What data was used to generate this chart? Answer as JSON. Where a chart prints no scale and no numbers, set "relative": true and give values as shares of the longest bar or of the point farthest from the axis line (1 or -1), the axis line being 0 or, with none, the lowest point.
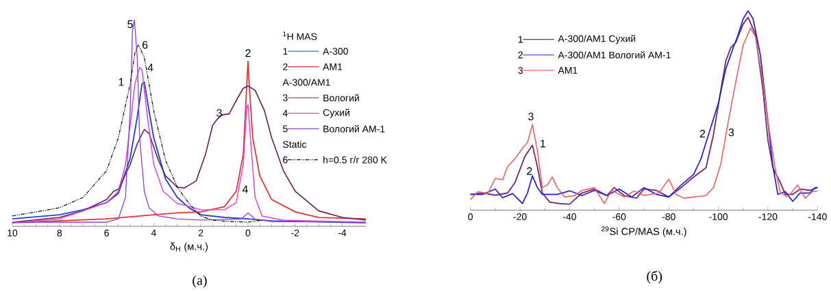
{
  "chart_data": [
    {
      "type": "line",
      "relative": true,
      "xlabel": "δ$_{H}$   (м.ч.)",
      "legend_title": "$^{1}$H MAS",
      "legend": "top right",
      "marker": "none",
      "xlim": [
        10,
        -5
      ],
      "xticks": [
        10,
        8,
        6,
        4,
        2,
        0,
        -2,
        -4
      ],
      "series": [
        {
          "name": "A-300",
          "color": "#1f3fe0",
          "line_style": "solid",
          "x": [
            10,
            8,
            7,
            6,
            5.5,
            5,
            4.7,
            4.5,
            4.4,
            4.2,
            4,
            3.5,
            3,
            2.5,
            2,
            1,
            0,
            -1,
            -5
          ],
          "values": [
            0.036,
            0.056,
            0.08,
            0.115,
            0.16,
            0.33,
            0.53,
            0.69,
            0.7,
            0.56,
            0.43,
            0.23,
            0.14,
            0.09,
            0.056,
            0.043,
            0.036,
            0.026,
            0.017
          ]
        },
        {
          "name": "AM1",
          "color": "#e83030",
          "line_style": "solid",
          "x": [
            10,
            6,
            4,
            3,
            2,
            1,
            0.5,
            0.2,
            0.05,
            0,
            -0.05,
            -0.2,
            -0.5,
            -1,
            -2,
            -3,
            -5
          ],
          "values": [
            0.017,
            0.036,
            0.056,
            0.065,
            0.07,
            0.095,
            0.17,
            0.35,
            0.69,
            0.8,
            0.69,
            0.43,
            0.245,
            0.13,
            0.07,
            0.043,
            0.036
          ]
        },
        {
          "name": "Вологий",
          "color": "#6a1b5a",
          "line_style": "solid",
          "x": [
            10,
            8,
            7,
            6,
            5.7,
            5.5,
            5,
            4.7,
            4.4,
            4.2,
            3.8,
            3.5,
            3,
            2.7,
            2.2,
            1.8,
            1.5,
            1.3,
            1.1,
            0.8,
            0.5,
            0.2,
            0,
            -0.3,
            -0.7,
            -1,
            -1.5,
            -2,
            -3,
            -4,
            -5
          ],
          "values": [
            0.02,
            0.043,
            0.075,
            0.13,
            0.17,
            0.18,
            0.3,
            0.4,
            0.47,
            0.45,
            0.32,
            0.245,
            0.19,
            0.186,
            0.22,
            0.35,
            0.49,
            0.52,
            0.54,
            0.545,
            0.61,
            0.67,
            0.68,
            0.66,
            0.56,
            0.43,
            0.27,
            0.17,
            0.075,
            0.043,
            0.03
          ]
        },
        {
          "name": "Сухий",
          "color": "#e040e0",
          "line_style": "solid",
          "x": [
            10,
            8,
            7,
            6,
            5.5,
            5.2,
            5,
            4.8,
            4.6,
            4.5,
            4.3,
            4,
            3.6,
            3,
            2.6,
            2,
            1,
            0.5,
            0.2,
            0.05,
            0,
            -0.1,
            -0.3,
            -0.6,
            -1.5,
            -5
          ],
          "values": [
            0.017,
            0.036,
            0.075,
            0.115,
            0.17,
            0.3,
            0.49,
            0.69,
            0.77,
            0.76,
            0.56,
            0.3,
            0.17,
            0.11,
            0.1,
            0.08,
            0.08,
            0.115,
            0.3,
            0.58,
            0.59,
            0.43,
            0.14,
            0.05,
            0.03,
            0.02
          ]
        },
        {
          "name": "Вологий АМ-1",
          "color": "#9040e0",
          "line_style": "solid",
          "x": [
            10,
            6,
            5.5,
            5.2,
            5,
            4.9,
            4.82,
            4.7,
            4.6,
            4.4,
            4.2,
            3.8,
            3,
            2,
            0.3,
            0,
            -0.3,
            -1,
            -5
          ],
          "values": [
            0.02,
            0.02,
            0.036,
            0.14,
            0.56,
            0.95,
            1,
            0.82,
            0.43,
            0.17,
            0.09,
            0.05,
            0.036,
            0.03,
            0.035,
            0.065,
            0.035,
            0.023,
            0.02
          ]
        },
        {
          "name": "h=0.5  г/г   280 K",
          "color": "#000000",
          "line_style": "dashed",
          "x": [
            10,
            8,
            7,
            6,
            5.5,
            5,
            4.8,
            4.65,
            4.4,
            4,
            3.5,
            3,
            2.5,
            2,
            1.5,
            1,
            0,
            -0.6
          ],
          "values": [
            0.05,
            0.09,
            0.14,
            0.27,
            0.43,
            0.69,
            0.84,
            0.88,
            0.82,
            0.56,
            0.32,
            0.19,
            0.11,
            0.05,
            0.03,
            0.025,
            0.02,
            0.03
          ]
        }
      ],
      "annotations": [
        "1",
        "2",
        "A-300/AM1",
        "3",
        "4",
        "5",
        "Static",
        "6",
        "(a)",
        "5",
        "6",
        "4",
        "1",
        "3",
        "2",
        "4"
      ]
    },
    {
      "type": "line",
      "relative": true,
      "xlabel": "$^{29}$Si  CP/MAS  (м.ч.)",
      "legend": "top left",
      "marker": "none",
      "xlim": [
        0,
        -140
      ],
      "xticks": [
        0,
        -20,
        -40,
        -60,
        -80,
        -100,
        -120,
        -140
      ],
      "series": [
        {
          "name": "A-300/AM1 Сухий",
          "color": "#7b2a6b",
          "line_style": "solid",
          "x": [
            0,
            -5,
            -10,
            -15,
            -18,
            -20,
            -22,
            -25,
            -27,
            -29,
            -32,
            -36,
            -40,
            -45,
            -50,
            -55,
            -58,
            -62,
            -67,
            -70,
            -75,
            -80,
            -85,
            -90,
            -95,
            -98,
            -101,
            -103,
            -105,
            -107,
            -110,
            -112,
            -115,
            -118,
            -120,
            -122,
            -125,
            -127,
            -130,
            -133,
            -137,
            -140
          ],
          "values": [
            0.079,
            0.086,
            0.075,
            0.086,
            0.139,
            0.205,
            0.27,
            0.325,
            0.219,
            0.086,
            0.04,
            0.033,
            0.03,
            0.086,
            0.106,
            0.073,
            0.113,
            0.073,
            0.06,
            0.106,
            0.099,
            0.066,
            0.113,
            0.166,
            0.212,
            0.377,
            0.603,
            0.748,
            0.815,
            0.841,
            0.934,
            0.967,
            0.88,
            0.603,
            0.351,
            0.212,
            0.139,
            0.079,
            0.079,
            0.106,
            0.099,
            0.113
          ]
        },
        {
          "name": "A-300/AM1 Вологий АМ-1",
          "color": "#2020e0",
          "line_style": "solid",
          "x": [
            0,
            -5,
            -10,
            -13,
            -17,
            -21,
            -23,
            -25,
            -27,
            -29,
            -35,
            -40,
            -45,
            -50,
            -55,
            -60,
            -65,
            -70,
            -75,
            -80,
            -85,
            -90,
            -93,
            -95,
            -100,
            -103,
            -106,
            -108,
            -110,
            -112,
            -114,
            -117,
            -120,
            -122,
            -124,
            -127,
            -130,
            -133,
            -137,
            -139,
            -140
          ],
          "values": [
            0.079,
            0.079,
            0.106,
            0.062,
            0.083,
            0.033,
            0.086,
            0.172,
            0.113,
            0.079,
            0.079,
            0.097,
            0.073,
            0.099,
            0.073,
            0.106,
            0.066,
            0.113,
            0.079,
            0.066,
            0.126,
            0.179,
            0.258,
            0.338,
            0.536,
            0.709,
            0.815,
            0.88,
            0.96,
            1,
            0.96,
            0.775,
            0.444,
            0.219,
            0.079,
            0.093,
            0.044,
            0.086,
            0.086,
            0.113,
            0.113
          ]
        },
        {
          "name": "AM1",
          "color": "#f06060",
          "line_style": "solid",
          "x": [
            0,
            -3,
            -7,
            -10,
            -13,
            -15,
            -18,
            -21,
            -23,
            -25,
            -27,
            -29,
            -31,
            -33,
            -35,
            -38,
            -42,
            -45,
            -50,
            -54,
            -57,
            -62,
            -66,
            -70,
            -76,
            -80,
            -83,
            -86,
            -90,
            -95,
            -98,
            -101,
            -104,
            -107,
            -110,
            -113,
            -115,
            -118,
            -120,
            -123,
            -125,
            -128,
            -132,
            -135,
            -138,
            -140
          ],
          "values": [
            0.053,
            0.093,
            0.083,
            0.159,
            0.152,
            0.219,
            0.258,
            0.311,
            0.338,
            0.43,
            0.298,
            0.113,
            0.126,
            0.166,
            0.113,
            0.066,
            0.073,
            0.099,
            0.113,
            0.033,
            0.099,
            0.066,
            0.096,
            0.073,
            0.086,
            0.155,
            0.079,
            0.06,
            0.066,
            0.073,
            0.113,
            0.232,
            0.444,
            0.642,
            0.828,
            0.914,
            0.868,
            0.642,
            0.444,
            0.205,
            0.086,
            0.066,
            0.126,
            0.06,
            0.093,
            0.096
          ]
        }
      ],
      "annotations": [
        "1",
        "2",
        "3",
        "(б)",
        "3",
        "1",
        "2",
        "2",
        "3"
      ]
    }
  ]
}
